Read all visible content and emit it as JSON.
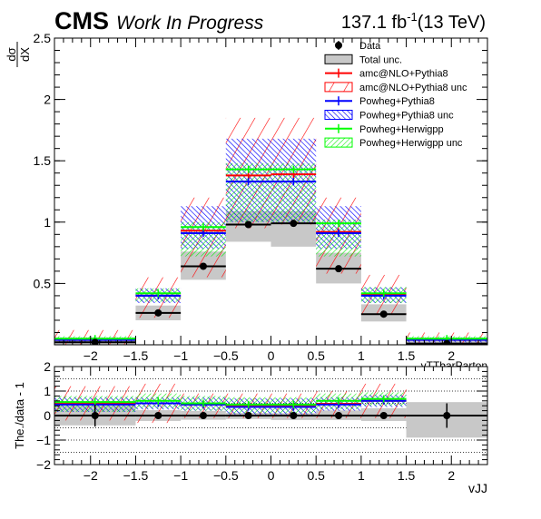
{
  "header": {
    "experiment": "CMS",
    "tag": "Work In Progress",
    "lumi_prefix": "137.1 fb",
    "lumi_exp": "-1",
    "lumi_suffix": "(13 TeV)"
  },
  "colors": {
    "data": "#000000",
    "total_unc": "#c8c8c8",
    "amc": "#ff0000",
    "powheg_pythia": "#0000ff",
    "powheg_herwig": "#00ff00"
  },
  "chart_data": [
    {
      "type": "bar",
      "panel": "main",
      "ylabel_num": "dσ",
      "ylabel_den": "dX",
      "xlabel": "",
      "overlap_label": "vTTbarParton",
      "xlim": [
        -2.4,
        2.4
      ],
      "ylim": [
        0,
        2.5
      ],
      "bin_edges": [
        -2.4,
        -1.5,
        -1.0,
        -0.5,
        0.0,
        0.5,
        1.0,
        1.5,
        2.4
      ],
      "x_ticks": [
        -2,
        -1.5,
        -1,
        -0.5,
        0,
        0.5,
        1,
        1.5,
        2
      ],
      "x_tick_labels": [
        "−2",
        "−1.5",
        "−1",
        "−0.5",
        "0",
        "0.5",
        "1",
        "1.5",
        "2"
      ],
      "y_ticks": [
        0.5,
        1,
        1.5,
        2,
        2.5
      ],
      "y_tick_labels": [
        "0.5",
        "1",
        "1.5",
        "2",
        "2.5"
      ],
      "legend": {
        "placement": "top-right",
        "entries": [
          {
            "label": "Data",
            "style": "marker"
          },
          {
            "label": "Total unc.",
            "style": "box"
          },
          {
            "label": "amc@NLO+Pythia8",
            "style": "line",
            "series": "amc"
          },
          {
            "label": "amc@NLO+Pythia8 unc",
            "style": "hatch",
            "series": "amc"
          },
          {
            "label": "Powheg+Pythia8",
            "style": "line",
            "series": "powheg_pythia"
          },
          {
            "label": "Powheg+Pythia8 unc",
            "style": "hatch",
            "series": "powheg_pythia"
          },
          {
            "label": "Powheg+Herwigpp",
            "style": "line",
            "series": "powheg_herwig"
          },
          {
            "label": "Powheg+Herwigpp unc",
            "style": "hatch",
            "series": "powheg_herwig"
          }
        ]
      },
      "data": {
        "x": [
          -1.95,
          -1.25,
          -0.75,
          -0.25,
          0.25,
          0.75,
          1.25,
          1.95
        ],
        "y": [
          0.02,
          0.26,
          0.64,
          0.98,
          0.99,
          0.62,
          0.25,
          0.01
        ],
        "yerr": [
          0.0,
          0.01,
          0.02,
          0.02,
          0.02,
          0.02,
          0.01,
          0.0
        ]
      },
      "total_unc": {
        "low": [
          0.0,
          0.2,
          0.53,
          0.84,
          0.8,
          0.5,
          0.19,
          0.0
        ],
        "high": [
          0.04,
          0.32,
          0.76,
          1.09,
          1.09,
          0.75,
          0.33,
          0.03
        ]
      },
      "series": [
        {
          "key": "amc",
          "name": "amc@NLO+Pythia8",
          "values": [
            0.04,
            0.4,
            0.93,
            1.38,
            1.39,
            0.92,
            0.41,
            0.04
          ],
          "unc_low": [
            0.0,
            0.22,
            0.55,
            0.95,
            0.98,
            0.58,
            0.25,
            0.0
          ],
          "unc_high": [
            0.12,
            0.55,
            1.2,
            1.85,
            1.85,
            1.2,
            0.57,
            0.1
          ]
        },
        {
          "key": "powheg_pythia",
          "name": "Powheg+Pythia8",
          "values": [
            0.04,
            0.4,
            0.91,
            1.33,
            1.33,
            0.91,
            0.4,
            0.04
          ],
          "unc_low": [
            0.02,
            0.34,
            0.78,
            1.0,
            1.0,
            0.78,
            0.34,
            0.02
          ],
          "unc_high": [
            0.06,
            0.46,
            1.13,
            1.68,
            1.68,
            1.13,
            0.47,
            0.06
          ]
        },
        {
          "key": "powheg_herwig",
          "name": "Powheg+Herwigpp",
          "values": [
            0.05,
            0.42,
            0.96,
            1.43,
            1.43,
            0.99,
            0.42,
            0.05
          ],
          "unc_low": [
            0.03,
            0.35,
            0.72,
            1.0,
            1.0,
            0.72,
            0.34,
            0.03
          ],
          "unc_high": [
            0.07,
            0.46,
            1.0,
            1.48,
            1.48,
            1.02,
            0.47,
            0.07
          ]
        }
      ]
    },
    {
      "type": "bar",
      "panel": "ratio",
      "ylabel": "The./data - 1",
      "xlabel": "vJJ",
      "xlim": [
        -2.4,
        2.4
      ],
      "ylim": [
        -2,
        2
      ],
      "grid": "dotted-horizontal",
      "y_gridlines": [
        -1.5,
        -1,
        -0.5,
        0,
        0.5,
        1,
        1.5
      ],
      "x_ticks": [
        -2,
        -1.5,
        -1,
        -0.5,
        0,
        0.5,
        1,
        1.5,
        2
      ],
      "x_tick_labels": [
        "−2",
        "−1.5",
        "−1",
        "−0.5",
        "0",
        "0.5",
        "1",
        "1.5",
        "2"
      ],
      "y_ticks": [
        -2,
        -1,
        0,
        1,
        2
      ],
      "y_tick_labels": [
        "−2",
        "−1",
        "0",
        "1",
        "2"
      ],
      "data": {
        "x": [
          -1.95,
          -1.25,
          -0.75,
          -0.25,
          0.25,
          0.75,
          1.25,
          1.95
        ],
        "y": [
          0,
          0,
          0,
          0,
          0,
          0,
          0,
          0
        ],
        "yerr": [
          0.45,
          0.05,
          0.04,
          0.03,
          0.03,
          0.04,
          0.05,
          0.5
        ]
      },
      "total_unc": {
        "low": [
          -0.4,
          -0.22,
          -0.17,
          -0.14,
          -0.18,
          -0.18,
          -0.22,
          -0.9
        ],
        "high": [
          0.4,
          0.22,
          0.19,
          0.11,
          0.1,
          0.21,
          0.3,
          0.55
        ]
      },
      "series": [
        {
          "key": "amc",
          "name": "amc@NLO+Pythia8",
          "values": [
            0.5,
            0.5,
            0.45,
            0.4,
            0.4,
            0.48,
            0.6,
            null
          ],
          "unc_low": [
            -0.2,
            -0.3,
            -0.1,
            -0.1,
            -0.1,
            -0.1,
            -0.1,
            null
          ],
          "unc_high": [
            1.2,
            1.3,
            0.9,
            0.9,
            0.9,
            1.0,
            1.3,
            null
          ]
        },
        {
          "key": "powheg_pythia",
          "name": "Powheg+Pythia8",
          "values": [
            0.45,
            0.5,
            0.45,
            0.35,
            0.35,
            0.45,
            0.6,
            null
          ],
          "unc_low": [
            0.15,
            0.25,
            0.2,
            0.05,
            0.05,
            0.2,
            0.35,
            null
          ],
          "unc_high": [
            0.75,
            0.75,
            0.75,
            0.7,
            0.7,
            0.75,
            0.85,
            null
          ]
        },
        {
          "key": "powheg_herwig",
          "name": "Powheg+Herwigpp",
          "values": [
            0.55,
            0.6,
            0.5,
            0.45,
            0.45,
            0.6,
            0.68,
            null
          ],
          "unc_low": [
            0.15,
            0.3,
            0.2,
            0.1,
            0.1,
            0.25,
            0.4,
            null
          ],
          "unc_high": [
            0.8,
            0.9,
            0.8,
            0.75,
            0.75,
            0.9,
            0.95,
            null
          ]
        }
      ]
    }
  ]
}
